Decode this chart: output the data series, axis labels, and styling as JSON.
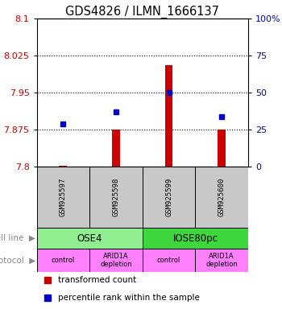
{
  "title": "GDS4826 / ILMN_1666137",
  "samples": [
    "GSM925597",
    "GSM925598",
    "GSM925599",
    "GSM925600"
  ],
  "red_values": [
    7.802,
    7.875,
    8.005,
    7.875
  ],
  "blue_values_pct": [
    29,
    37,
    50,
    34
  ],
  "ylim_left": [
    7.8,
    8.1
  ],
  "yticks_left": [
    7.8,
    7.875,
    7.95,
    8.025,
    8.1
  ],
  "yticks_right": [
    0,
    25,
    50,
    75,
    100
  ],
  "cell_line_labels": [
    "OSE4",
    "IOSE80pc"
  ],
  "cell_line_spans": [
    [
      0,
      2
    ],
    [
      2,
      4
    ]
  ],
  "cell_line_colors": [
    "#90EE90",
    "#3DD63D"
  ],
  "protocol_labels": [
    "control",
    "ARID1A\ndepletion",
    "control",
    "ARID1A\ndepletion"
  ],
  "protocol_color": "#FF80FF",
  "bar_bottom": 7.8,
  "red_color": "#CC0000",
  "blue_color": "#0000CC",
  "left_label_color": "#CC0000",
  "right_label_color": "#0000CC",
  "gray_color": "#C8C8C8"
}
